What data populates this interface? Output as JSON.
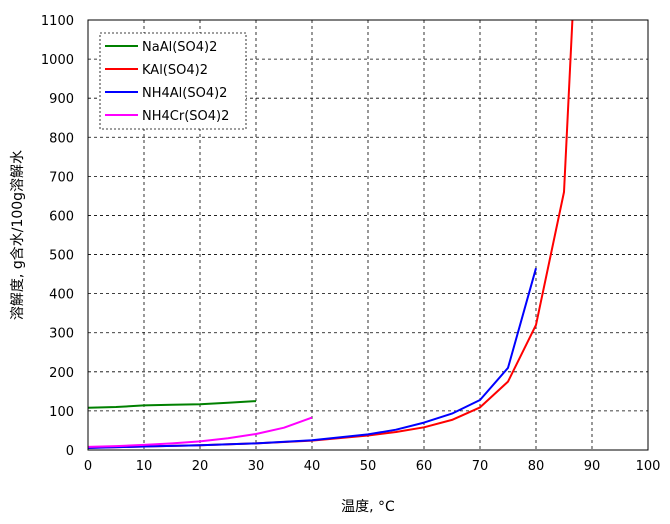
{
  "chart_data": {
    "type": "line",
    "title": "",
    "xlabel": "温度, °C",
    "ylabel": "溶解度, g含水/100g溶解水",
    "xlim": [
      0,
      100
    ],
    "ylim": [
      0,
      1100
    ],
    "xticks": [
      0,
      10,
      20,
      30,
      40,
      50,
      60,
      70,
      80,
      90,
      100
    ],
    "yticks": [
      0,
      100,
      200,
      300,
      400,
      500,
      600,
      700,
      800,
      900,
      1000,
      1100
    ],
    "grid": true,
    "legend_position": "top-left",
    "series": [
      {
        "name": "NaAl(SO4)2",
        "color": "#008000",
        "x": [
          0,
          5,
          10,
          15,
          20,
          25,
          30
        ],
        "y": [
          108,
          110,
          114,
          116,
          117,
          121,
          125
        ]
      },
      {
        "name": "KAl(SO4)2",
        "color": "#ff0000",
        "x": [
          0,
          10,
          20,
          30,
          40,
          50,
          55,
          60,
          65,
          70,
          75,
          80,
          85,
          86.5
        ],
        "y": [
          6,
          9,
          12,
          17,
          24,
          37,
          46,
          58,
          77,
          109,
          175,
          320,
          660,
          1100
        ]
      },
      {
        "name": "NH4Al(SO4)2",
        "color": "#0000ff",
        "x": [
          0,
          10,
          20,
          30,
          40,
          50,
          55,
          60,
          65,
          70,
          75,
          80
        ],
        "y": [
          5,
          9,
          12,
          17,
          25,
          40,
          52,
          70,
          93,
          128,
          210,
          465
        ]
      },
      {
        "name": "NH4Cr(SO4)2",
        "color": "#ff00ff",
        "x": [
          0,
          5,
          10,
          15,
          20,
          25,
          30,
          35,
          40
        ],
        "y": [
          8,
          10,
          13,
          17,
          22,
          30,
          41,
          57,
          83
        ]
      }
    ]
  }
}
